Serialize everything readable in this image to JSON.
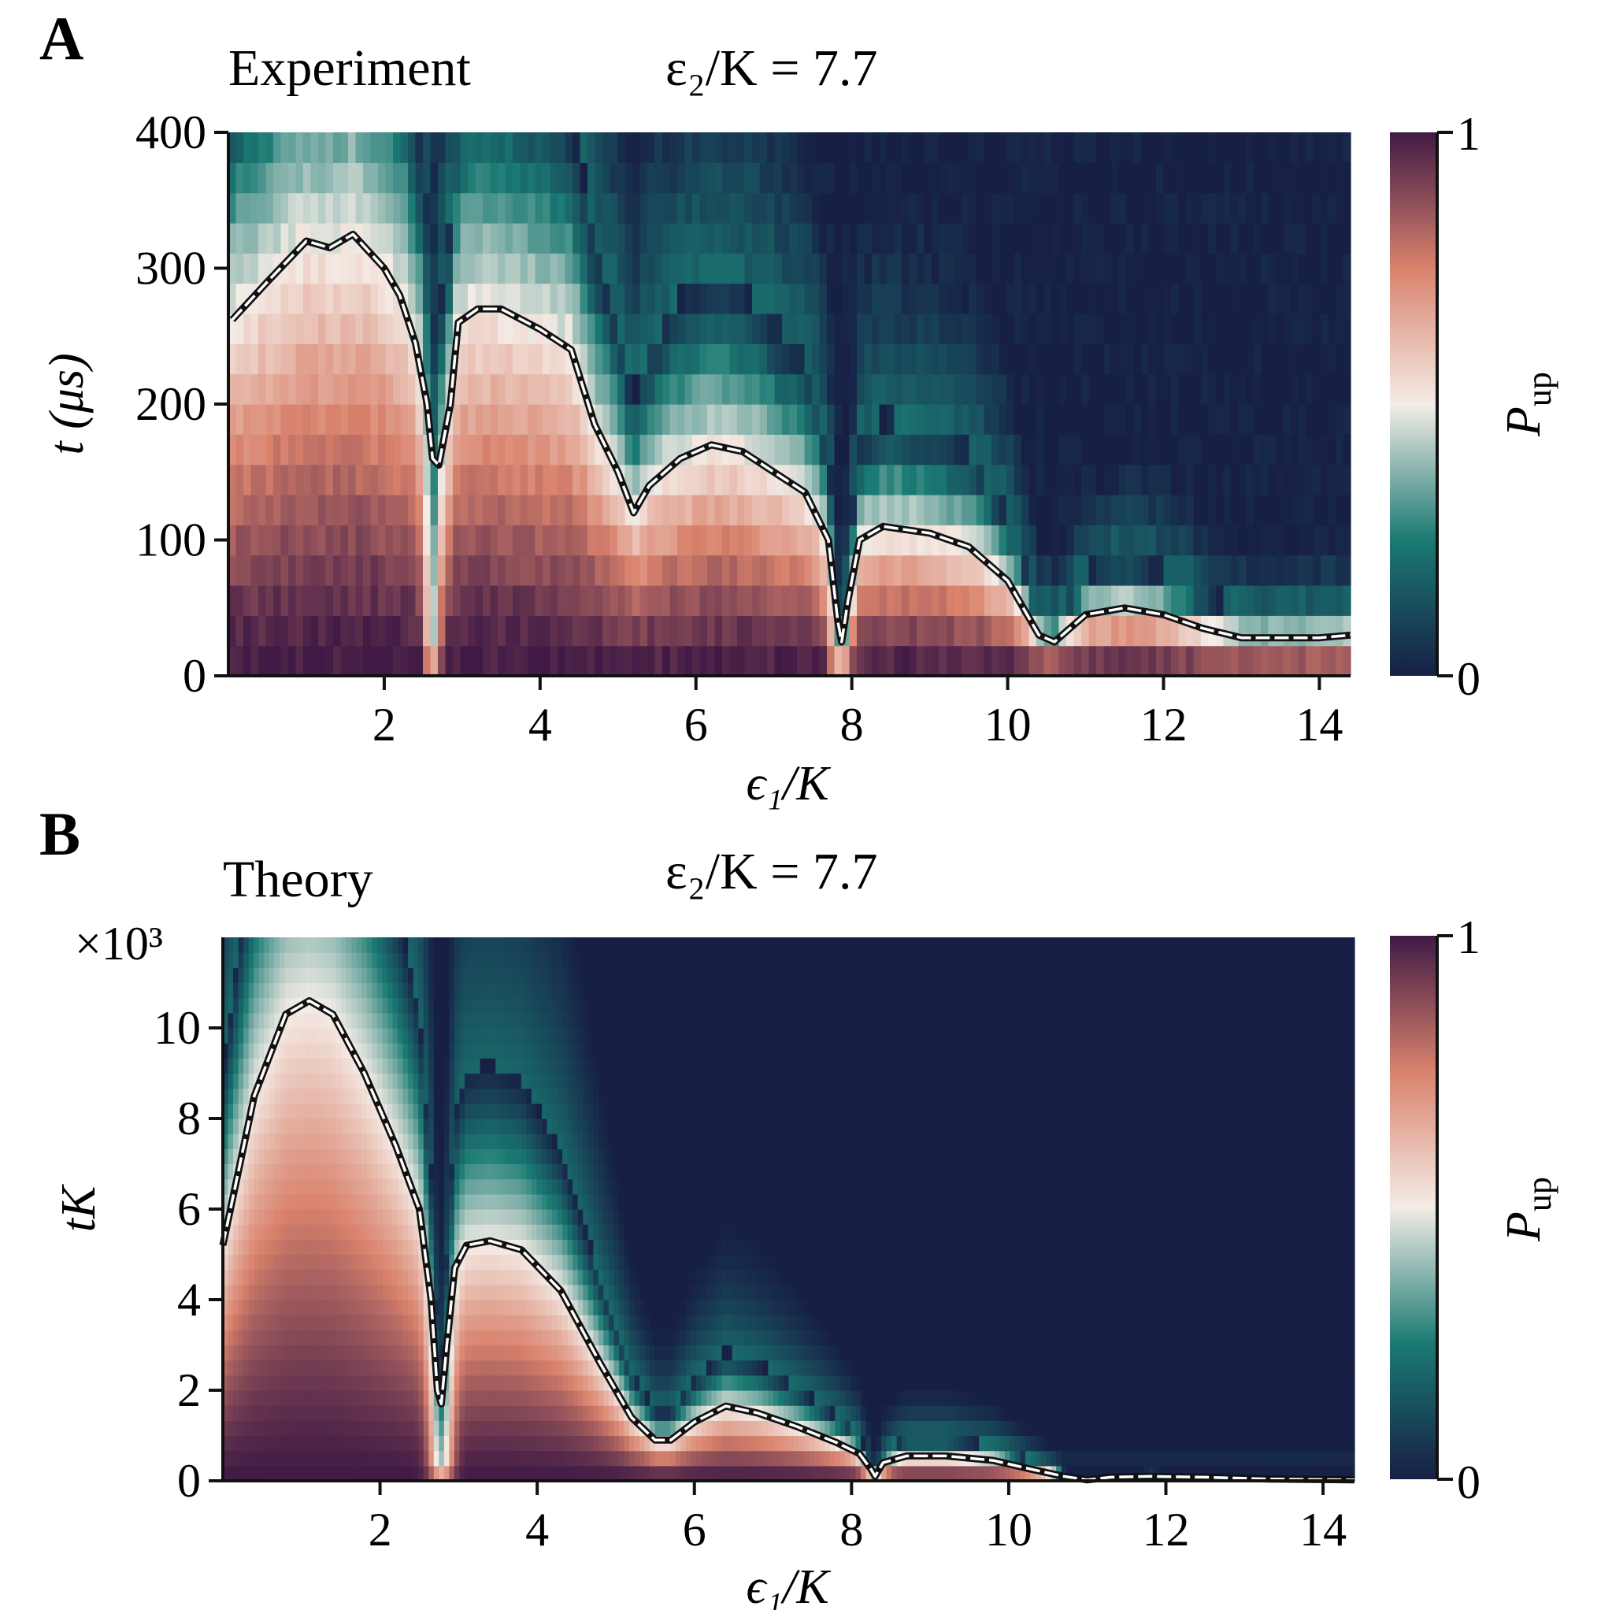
{
  "colormap": {
    "name": "curl (reversed)",
    "stops": [
      "#171f45",
      "#1a7a73",
      "#f4ece6",
      "#d9826c",
      "#401a45"
    ]
  },
  "chart_data": [
    {
      "panel": "A",
      "type": "heatmap",
      "title": "Experiment",
      "param_label": "ε₂/K = 7.7",
      "xlabel": "ϵ₁/K",
      "ylabel": "t (μs)",
      "xlim": [
        0.0,
        14.4
      ],
      "ylim": [
        0,
        400
      ],
      "xticks": [
        2,
        4,
        6,
        8,
        10,
        12,
        14
      ],
      "yticks": [
        0,
        100,
        200,
        300,
        400
      ],
      "tick_labels_x": [
        "2",
        "4",
        "6",
        "8",
        "10",
        "12",
        "14"
      ],
      "tick_labels_y": [
        "0",
        "100",
        "200",
        "300",
        "400"
      ],
      "colorbar": {
        "label": "P_up",
        "min": 0,
        "max": 1,
        "tick_labels": [
          "0",
          "1"
        ]
      },
      "contour_line": {
        "label": "P_up = 0.5 contour",
        "x": [
          0.05,
          0.5,
          1.0,
          1.3,
          1.6,
          2.0,
          2.2,
          2.4,
          2.55,
          2.62,
          2.7,
          2.85,
          2.95,
          3.2,
          3.5,
          4.0,
          4.4,
          4.7,
          5.0,
          5.2,
          5.4,
          5.8,
          6.2,
          6.6,
          7.0,
          7.4,
          7.7,
          7.82,
          7.87,
          7.95,
          8.1,
          8.4,
          9.0,
          9.5,
          10.0,
          10.4,
          10.6,
          11.0,
          11.5,
          12.0,
          12.5,
          13.0,
          13.5,
          14.0,
          14.4
        ],
        "y": [
          262,
          290,
          320,
          315,
          325,
          300,
          280,
          245,
          200,
          160,
          155,
          200,
          260,
          270,
          270,
          255,
          240,
          185,
          150,
          120,
          140,
          160,
          170,
          165,
          150,
          135,
          100,
          40,
          25,
          55,
          100,
          110,
          105,
          95,
          70,
          30,
          25,
          45,
          50,
          45,
          35,
          28,
          28,
          28,
          30
        ]
      },
      "notch_features": [
        {
          "x": 2.62,
          "width": 0.1,
          "note": "narrow vertical stripe"
        },
        {
          "x": 7.85,
          "width": 0.14,
          "note": "narrow vertical stripe"
        }
      ]
    },
    {
      "panel": "B",
      "type": "heatmap",
      "title": "Theory",
      "param_label": "ε₂/K = 7.7",
      "xlabel": "ϵ₁/K",
      "ylabel": "tK",
      "y_multiplier": "×10³",
      "xlim": [
        0.0,
        14.4
      ],
      "ylim": [
        0,
        12
      ],
      "xticks": [
        2,
        4,
        6,
        8,
        10,
        12,
        14
      ],
      "yticks": [
        0,
        2,
        4,
        6,
        8,
        10
      ],
      "tick_labels_x": [
        "2",
        "4",
        "6",
        "8",
        "10",
        "12",
        "14"
      ],
      "tick_labels_y": [
        "0",
        "2",
        "4",
        "6",
        "8",
        "10"
      ],
      "colorbar": {
        "label": "P_up",
        "min": 0,
        "max": 1,
        "tick_labels": [
          "0",
          "1"
        ]
      },
      "contour_line": {
        "label": "P_up = 0.5 contour",
        "x": [
          0.0,
          0.4,
          0.8,
          1.1,
          1.4,
          1.8,
          2.2,
          2.5,
          2.65,
          2.73,
          2.78,
          2.85,
          2.95,
          3.1,
          3.4,
          3.8,
          4.3,
          4.8,
          5.2,
          5.5,
          5.7,
          6.0,
          6.4,
          6.8,
          7.3,
          7.8,
          8.1,
          8.25,
          8.3,
          8.4,
          8.7,
          9.2,
          9.8,
          10.3,
          10.7,
          11.0,
          11.3,
          11.8,
          12.5,
          13.3,
          14.4
        ],
        "y": [
          5.2,
          8.5,
          10.3,
          10.6,
          10.3,
          9.0,
          7.4,
          6.0,
          4.0,
          2.0,
          1.7,
          3.0,
          4.7,
          5.2,
          5.3,
          5.1,
          4.2,
          2.6,
          1.4,
          0.9,
          0.9,
          1.3,
          1.65,
          1.5,
          1.2,
          0.85,
          0.6,
          0.25,
          0.1,
          0.4,
          0.55,
          0.55,
          0.45,
          0.25,
          0.1,
          0.02,
          0.08,
          0.1,
          0.08,
          0.04,
          0.02
        ]
      },
      "notch_features": [
        {
          "x": 2.78,
          "width": 0.15,
          "note": "narrow vertical stripe"
        },
        {
          "x": 8.3,
          "width": 0.15,
          "note": "narrow vertical stripe"
        }
      ]
    }
  ]
}
